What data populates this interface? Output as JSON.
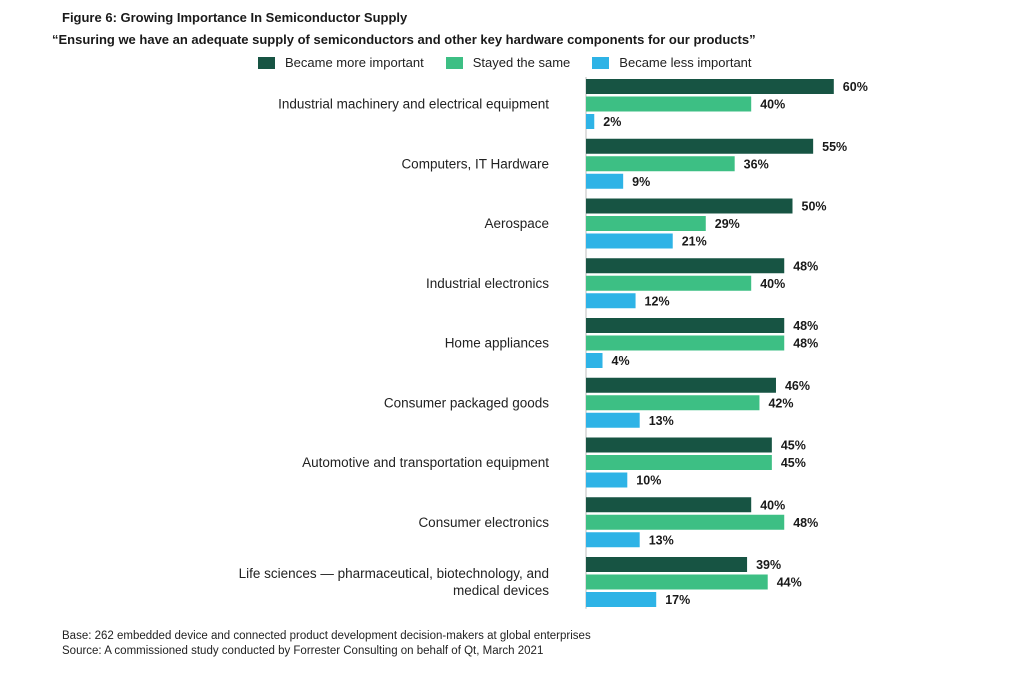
{
  "title": "Figure 6: Growing Importance In Semiconductor Supply",
  "subtitle": "“Ensuring we have an adequate supply of semiconductors and other key hardware components for our products”",
  "base_note": "Base: 262 embedded device and connected product development decision-makers at global enterprises",
  "source_note": "Source: A commissioned study conducted by Forrester Consulting on behalf of Qt, March 2021",
  "colors": {
    "more_important": "#175443",
    "same": "#3dbf84",
    "less_important": "#2eb3e6"
  },
  "chart_data": {
    "type": "bar",
    "orientation": "horizontal",
    "categories": [
      [
        "Industrial machinery and electrical equipment"
      ],
      [
        "Computers, IT Hardware"
      ],
      [
        "Aerospace"
      ],
      [
        "Industrial electronics"
      ],
      [
        "Home appliances"
      ],
      [
        "Consumer packaged goods"
      ],
      [
        "Automotive and transportation equipment"
      ],
      [
        "Consumer electronics"
      ],
      [
        "Life sciences — pharmaceutical, biotechnology, and",
        "medical devices"
      ]
    ],
    "series": [
      {
        "name": "Became more important",
        "color": "#175443",
        "values": [
          60,
          55,
          50,
          48,
          48,
          46,
          45,
          40,
          39
        ]
      },
      {
        "name": "Stayed the same",
        "color": "#3dbf84",
        "values": [
          40,
          36,
          29,
          40,
          48,
          42,
          45,
          48,
          44
        ]
      },
      {
        "name": "Became less important",
        "color": "#2eb3e6",
        "values": [
          2,
          9,
          21,
          12,
          4,
          13,
          10,
          13,
          17
        ]
      }
    ],
    "value_suffix": "%",
    "xlim": [
      0,
      100
    ],
    "grid": false,
    "legend_position": "top"
  }
}
